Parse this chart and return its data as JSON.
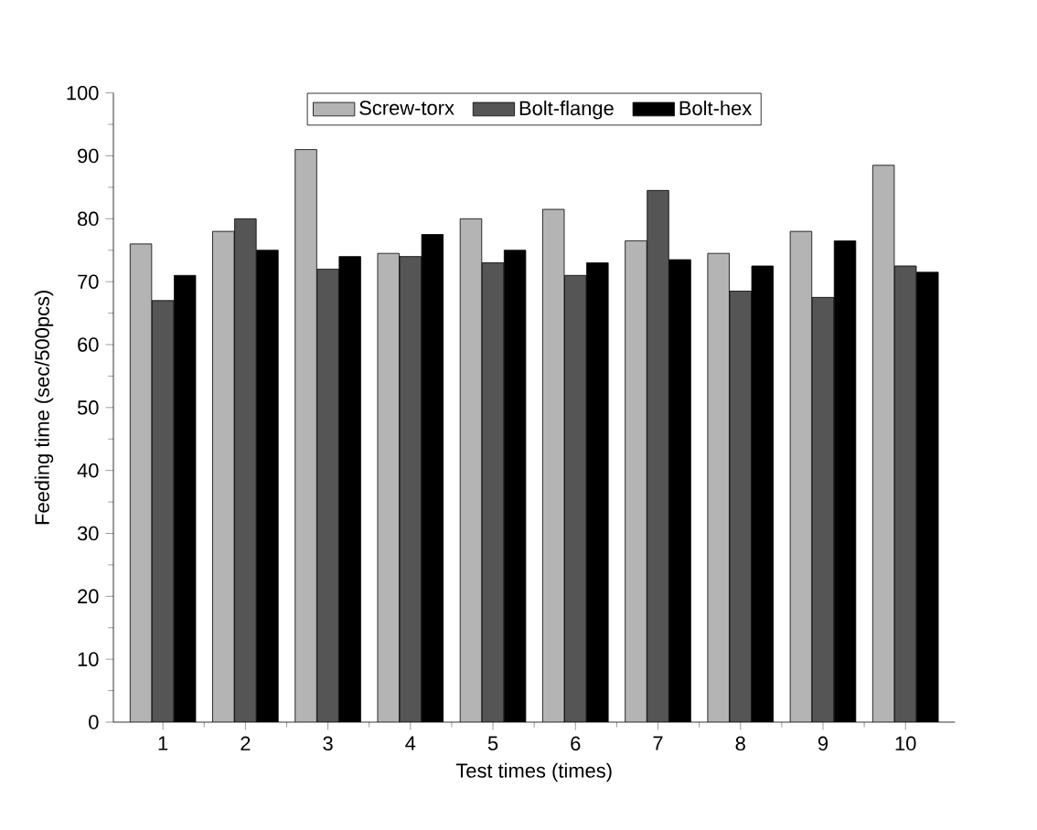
{
  "chart_data": {
    "type": "bar",
    "xlabel": "Test times (times)",
    "ylabel": "Feeding time (sec/500pcs)",
    "categories": [
      "1",
      "2",
      "3",
      "4",
      "5",
      "6",
      "7",
      "8",
      "9",
      "10"
    ],
    "series": [
      {
        "name": "Screw-torx",
        "color": "#b4b4b4",
        "values": [
          76,
          78,
          91,
          74.5,
          80,
          81.5,
          76.5,
          74.5,
          78,
          88.5
        ]
      },
      {
        "name": "Bolt-flange",
        "color": "#555555",
        "values": [
          67,
          80,
          72,
          74,
          73,
          71,
          84.5,
          68.5,
          67.5,
          72.5
        ]
      },
      {
        "name": "Bolt-hex",
        "color": "#000000",
        "values": [
          71,
          75,
          74,
          77.5,
          75,
          73,
          73.5,
          72.5,
          76.5,
          71.5
        ]
      }
    ],
    "ylim": [
      0,
      100
    ],
    "yticks": [
      0,
      10,
      20,
      30,
      40,
      50,
      60,
      70,
      80,
      90,
      100
    ],
    "legend": "top",
    "grid": false
  }
}
